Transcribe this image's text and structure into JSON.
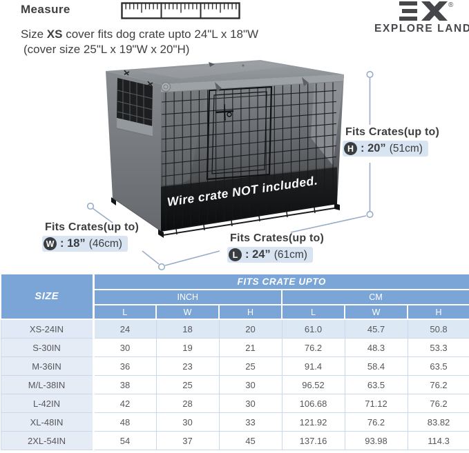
{
  "header": {
    "measure_label": "Measure",
    "desc": {
      "prefix": "Size ",
      "size": "XS",
      "suffix": " cover fits dog crate upto 24\"L x 18\"W",
      "line2": "(cover size 25\"L x 19\"W x 20\"H)"
    },
    "brand": {
      "registered": "®",
      "name": "EXPLORE LAND"
    }
  },
  "diagram": {
    "watermark": "Wire crate NOT included.",
    "annotations": [
      {
        "id": "H",
        "label": "Fits Crates(up to)",
        "letter": "H",
        "value_in": ": 20”",
        "value_cm": "(51cm)"
      },
      {
        "id": "W",
        "label": "Fits Crates(up to)",
        "letter": "W",
        "value_in": ": 18”",
        "value_cm": "(46cm)"
      },
      {
        "id": "L",
        "label": "Fits Crates(up to)",
        "letter": "L",
        "value_in": ": 24”",
        "value_cm": "(61cm)"
      }
    ],
    "colors": {
      "cover_gray": "#8f9498",
      "measure_line": "#97adc8",
      "value_highlight": "#d8e4f1",
      "badge": "#3a3d40"
    }
  },
  "table": {
    "title": "FITS CRATE UPTO",
    "size_header": "SIZE",
    "unit_headers": [
      "INCH",
      "CM"
    ],
    "dim_headers": [
      "L",
      "W",
      "H",
      "L",
      "W",
      "H"
    ],
    "header_color": "#7ba5d7",
    "rows": [
      {
        "size": "XS-24IN",
        "values": [
          "24",
          "18",
          "20",
          "61.0",
          "45.7",
          "50.8"
        ]
      },
      {
        "size": "S-30IN",
        "values": [
          "30",
          "19",
          "21",
          "76.2",
          "48.3",
          "53.3"
        ]
      },
      {
        "size": "M-36IN",
        "values": [
          "36",
          "23",
          "25",
          "91.4",
          "58.4",
          "63.5"
        ]
      },
      {
        "size": "M/L-38IN",
        "values": [
          "38",
          "25",
          "30",
          "96.52",
          "63.5",
          "76.2"
        ]
      },
      {
        "size": "L-42IN",
        "values": [
          "42",
          "28",
          "30",
          "106.68",
          "71.12",
          "76.2"
        ]
      },
      {
        "size": "XL-48IN",
        "values": [
          "48",
          "30",
          "33",
          "121.92",
          "76.2",
          "83.82"
        ]
      },
      {
        "size": "2XL-54IN",
        "values": [
          "54",
          "37",
          "45",
          "137.16",
          "93.98",
          "114.3"
        ]
      }
    ]
  }
}
